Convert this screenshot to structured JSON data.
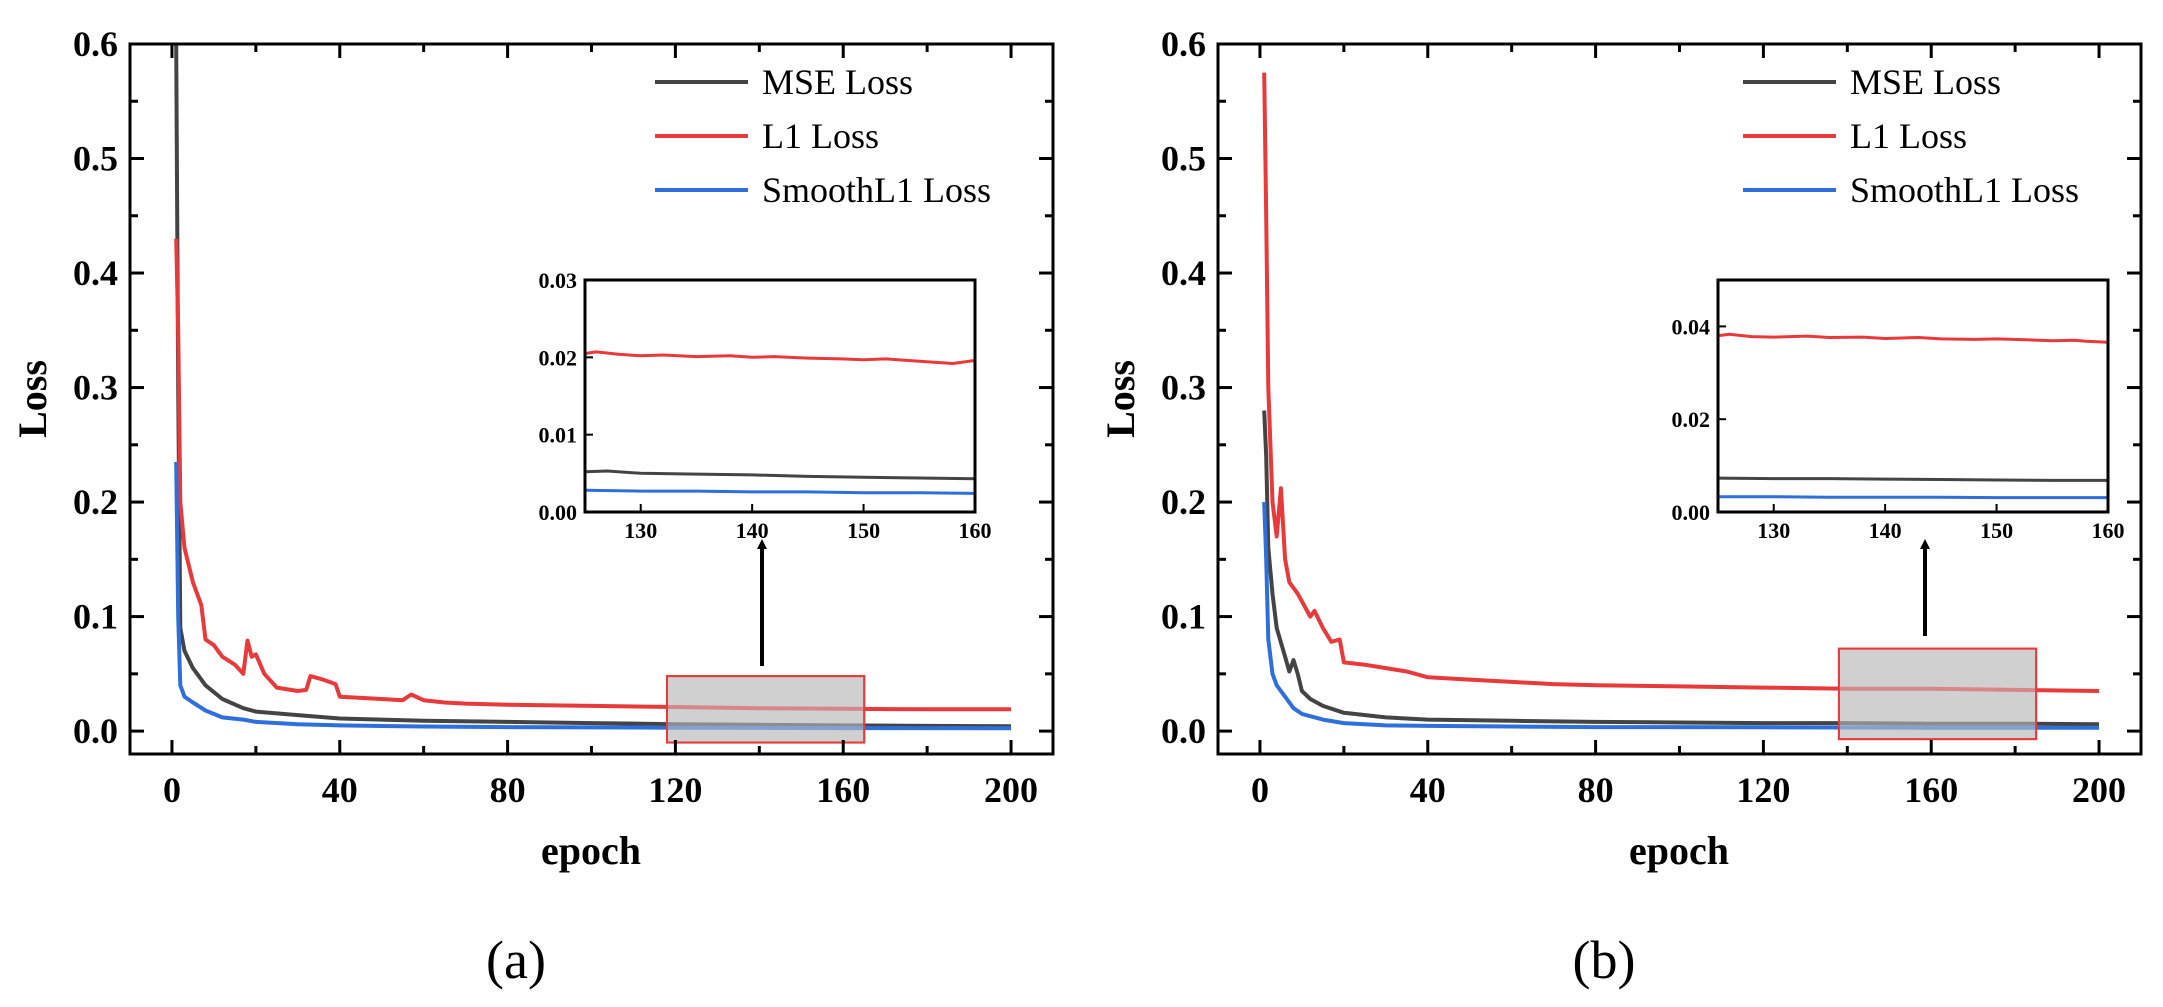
{
  "chart_data": [
    {
      "type": "line",
      "panel_label": "(a)",
      "xlabel": "epoch",
      "ylabel": "Loss",
      "xlim": [
        -10,
        210
      ],
      "ylim": [
        -0.02,
        0.6
      ],
      "xticks": [
        0,
        40,
        80,
        120,
        160,
        200
      ],
      "xtick_labels": [
        "0",
        "40",
        "80",
        "120",
        "160",
        "200"
      ],
      "yticks": [
        0.0,
        0.1,
        0.2,
        0.3,
        0.4,
        0.5,
        0.6
      ],
      "ytick_labels": [
        "0.0",
        "0.1",
        "0.2",
        "0.3",
        "0.4",
        "0.5",
        "0.6"
      ],
      "legend": {
        "position": "top-right",
        "entries": [
          "MSE Loss",
          "L1 Loss",
          "SmoothL1 Loss"
        ]
      },
      "series": [
        {
          "name": "MSE Loss",
          "color": "#444444",
          "x": [
            1,
            1.5,
            2,
            3,
            5,
            8,
            12,
            17,
            20,
            30,
            40,
            60,
            80,
            100,
            120,
            140,
            160,
            180,
            200
          ],
          "y": [
            0.6,
            0.3,
            0.09,
            0.07,
            0.055,
            0.04,
            0.028,
            0.02,
            0.017,
            0.014,
            0.011,
            0.009,
            0.008,
            0.007,
            0.006,
            0.0055,
            0.005,
            0.0045,
            0.0043
          ]
        },
        {
          "name": "L1 Loss",
          "color": "#e8393b",
          "x": [
            1,
            1.5,
            2,
            3,
            5,
            7,
            8,
            10,
            12,
            15,
            17,
            18,
            19,
            20,
            22,
            25,
            30,
            32,
            33,
            36,
            39,
            40,
            45,
            50,
            55,
            57,
            60,
            65,
            70,
            80,
            100,
            120,
            140,
            160,
            180,
            200
          ],
          "y": [
            0.43,
            0.35,
            0.2,
            0.16,
            0.13,
            0.11,
            0.08,
            0.075,
            0.065,
            0.058,
            0.05,
            0.079,
            0.065,
            0.067,
            0.05,
            0.038,
            0.035,
            0.036,
            0.048,
            0.045,
            0.041,
            0.03,
            0.029,
            0.028,
            0.027,
            0.032,
            0.027,
            0.025,
            0.024,
            0.023,
            0.022,
            0.021,
            0.02,
            0.0195,
            0.019,
            0.019
          ]
        },
        {
          "name": "SmoothL1 Loss",
          "color": "#2e6fdc",
          "x": [
            1,
            1.5,
            2,
            3,
            5,
            8,
            12,
            17,
            20,
            30,
            40,
            60,
            80,
            120,
            160,
            200
          ],
          "y": [
            0.235,
            0.1,
            0.04,
            0.03,
            0.025,
            0.018,
            0.012,
            0.01,
            0.008,
            0.006,
            0.005,
            0.004,
            0.0035,
            0.003,
            0.0026,
            0.0024
          ]
        }
      ],
      "highlight_box": {
        "x_range": [
          118,
          165
        ],
        "y_range": [
          -0.01,
          0.048
        ]
      },
      "inset": {
        "xlim": [
          125,
          160
        ],
        "ylim": [
          0,
          0.03
        ],
        "xticks": [
          130,
          140,
          150,
          160
        ],
        "xtick_labels": [
          "130",
          "140",
          "150",
          "160"
        ],
        "yticks": [
          0,
          0.01,
          0.02,
          0.03
        ],
        "ytick_labels": [
          "0.00",
          "0.01",
          "0.02",
          "0.03"
        ],
        "series": [
          {
            "name": "MSE Loss",
            "color": "#444444",
            "x": [
              125,
              127,
              130,
              135,
              140,
              145,
              150,
              155,
              160
            ],
            "y": [
              0.0052,
              0.0053,
              0.005,
              0.0049,
              0.0048,
              0.0046,
              0.0045,
              0.0044,
              0.0043
            ]
          },
          {
            "name": "L1 Loss",
            "color": "#e8393b",
            "x": [
              125,
              126,
              128,
              130,
              132,
              135,
              138,
              140,
              142,
              145,
              148,
              150,
              152,
              155,
              157,
              158,
              159,
              160
            ],
            "y": [
              0.0205,
              0.0207,
              0.0204,
              0.0202,
              0.0203,
              0.0201,
              0.0202,
              0.02,
              0.0201,
              0.0199,
              0.0198,
              0.0197,
              0.0198,
              0.0195,
              0.0193,
              0.0192,
              0.0194,
              0.0196
            ]
          },
          {
            "name": "SmoothL1 Loss",
            "color": "#2e6fdc",
            "x": [
              125,
              130,
              135,
              140,
              145,
              150,
              155,
              160
            ],
            "y": [
              0.0028,
              0.0027,
              0.0027,
              0.0026,
              0.0026,
              0.0025,
              0.0025,
              0.0024
            ]
          }
        ]
      }
    },
    {
      "type": "line",
      "panel_label": "(b)",
      "xlabel": "epoch",
      "ylabel": "Loss",
      "xlim": [
        -10,
        210
      ],
      "ylim": [
        -0.02,
        0.6
      ],
      "xticks": [
        0,
        40,
        80,
        120,
        160,
        200
      ],
      "xtick_labels": [
        "0",
        "40",
        "80",
        "120",
        "160",
        "200"
      ],
      "yticks": [
        0.0,
        0.1,
        0.2,
        0.3,
        0.4,
        0.5,
        0.6
      ],
      "ytick_labels": [
        "0.0",
        "0.1",
        "0.2",
        "0.3",
        "0.4",
        "0.5",
        "0.6"
      ],
      "legend": {
        "position": "top-right",
        "entries": [
          "MSE Loss",
          "L1 Loss",
          "SmoothL1 Loss"
        ]
      },
      "series": [
        {
          "name": "MSE Loss",
          "color": "#444444",
          "x": [
            1,
            1.5,
            2,
            3,
            4,
            6,
            7,
            8,
            9,
            10,
            12,
            15,
            20,
            30,
            40,
            60,
            80,
            100,
            120,
            140,
            160,
            180,
            200
          ],
          "y": [
            0.28,
            0.24,
            0.16,
            0.12,
            0.09,
            0.065,
            0.052,
            0.062,
            0.05,
            0.035,
            0.028,
            0.022,
            0.016,
            0.012,
            0.01,
            0.009,
            0.008,
            0.0075,
            0.007,
            0.007,
            0.0065,
            0.0065,
            0.006
          ]
        },
        {
          "name": "L1 Loss",
          "color": "#e8393b",
          "x": [
            1,
            1.5,
            2,
            3,
            4,
            5,
            6,
            7,
            9,
            12,
            13,
            15,
            17,
            19,
            20,
            25,
            30,
            35,
            40,
            50,
            60,
            70,
            80,
            100,
            120,
            140,
            160,
            180,
            200
          ],
          "y": [
            0.575,
            0.45,
            0.3,
            0.2,
            0.17,
            0.212,
            0.15,
            0.13,
            0.12,
            0.1,
            0.105,
            0.09,
            0.078,
            0.08,
            0.06,
            0.058,
            0.055,
            0.052,
            0.047,
            0.045,
            0.043,
            0.041,
            0.04,
            0.039,
            0.038,
            0.037,
            0.037,
            0.036,
            0.035
          ]
        },
        {
          "name": "SmoothL1 Loss",
          "color": "#2e6fdc",
          "x": [
            1,
            1.5,
            2,
            3,
            4,
            6,
            8,
            10,
            15,
            20,
            30,
            40,
            60,
            80,
            120,
            160,
            200
          ],
          "y": [
            0.2,
            0.15,
            0.08,
            0.05,
            0.04,
            0.03,
            0.02,
            0.015,
            0.01,
            0.007,
            0.005,
            0.0045,
            0.004,
            0.0035,
            0.0033,
            0.003,
            0.003
          ]
        }
      ],
      "highlight_box": {
        "x_range": [
          138,
          185
        ],
        "y_range": [
          -0.007,
          0.072
        ]
      },
      "inset": {
        "xlim": [
          125,
          160
        ],
        "ylim": [
          0,
          0.05
        ],
        "xticks": [
          130,
          140,
          150,
          160
        ],
        "xtick_labels": [
          "130",
          "140",
          "150",
          "160"
        ],
        "yticks": [
          0,
          0.02,
          0.04
        ],
        "ytick_labels": [
          "0.00",
          "0.02",
          "0.04"
        ],
        "series": [
          {
            "name": "MSE Loss",
            "color": "#444444",
            "x": [
              125,
              130,
              135,
              140,
              145,
              150,
              155,
              160
            ],
            "y": [
              0.0073,
              0.0072,
              0.0072,
              0.0071,
              0.007,
              0.0069,
              0.0068,
              0.0068
            ]
          },
          {
            "name": "L1 Loss",
            "color": "#e8393b",
            "x": [
              125,
              126,
              128,
              130,
              133,
              135,
              138,
              140,
              143,
              145,
              148,
              150,
              153,
              155,
              157,
              158,
              160
            ],
            "y": [
              0.038,
              0.0383,
              0.0378,
              0.0377,
              0.0379,
              0.0376,
              0.0377,
              0.0374,
              0.0376,
              0.0373,
              0.0372,
              0.0373,
              0.0371,
              0.0369,
              0.037,
              0.0368,
              0.0366
            ]
          },
          {
            "name": "SmoothL1 Loss",
            "color": "#2e6fdc",
            "x": [
              125,
              130,
              135,
              140,
              145,
              150,
              155,
              160
            ],
            "y": [
              0.0033,
              0.0033,
              0.0032,
              0.0032,
              0.0032,
              0.0031,
              0.0031,
              0.0031
            ]
          }
        ]
      }
    }
  ]
}
